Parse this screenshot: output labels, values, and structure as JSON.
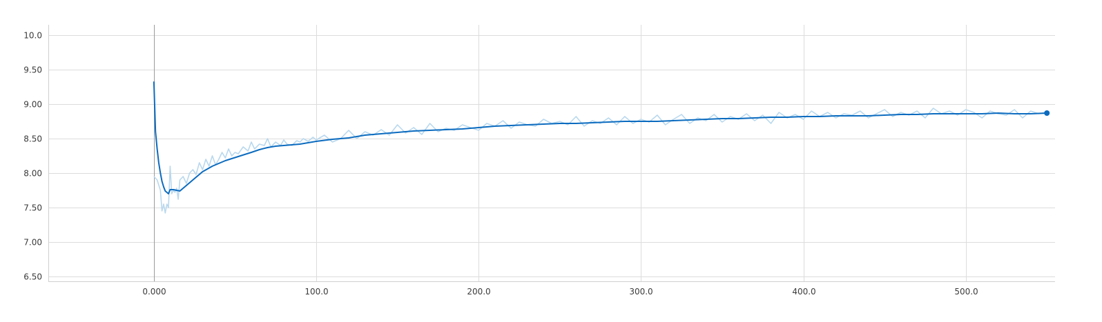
{
  "chart_data": {
    "type": "line",
    "title": "",
    "xlabel": "",
    "ylabel": "",
    "xlim": [
      -65,
      555
    ],
    "ylim": [
      6.43,
      10.15
    ],
    "x_ticks": [
      {
        "value": 0,
        "label": "0.000"
      },
      {
        "value": 100,
        "label": "100.0"
      },
      {
        "value": 200,
        "label": "200.0"
      },
      {
        "value": 300,
        "label": "300.0"
      },
      {
        "value": 400,
        "label": "400.0"
      },
      {
        "value": 500,
        "label": "500.0"
      }
    ],
    "y_ticks": [
      {
        "value": 6.5,
        "label": "6.50"
      },
      {
        "value": 7.0,
        "label": "7.00"
      },
      {
        "value": 7.5,
        "label": "7.50"
      },
      {
        "value": 8.0,
        "label": "8.00"
      },
      {
        "value": 8.5,
        "label": "8.50"
      },
      {
        "value": 9.0,
        "label": "9.00"
      },
      {
        "value": 9.5,
        "label": "9.50"
      },
      {
        "value": 10.0,
        "label": "10.0"
      }
    ],
    "grid": true,
    "colors": {
      "raw": "#b8d8ee",
      "smoothed": "#0b6bbf",
      "grid": "#dcdcdc"
    },
    "series": [
      {
        "role": "raw",
        "x": [
          0,
          2,
          4,
          5,
          6,
          7,
          8,
          9,
          10,
          11,
          12,
          13,
          14,
          15,
          16,
          18,
          20,
          22,
          24,
          26,
          28,
          30,
          32,
          34,
          36,
          38,
          40,
          42,
          44,
          46,
          48,
          50,
          52,
          55,
          58,
          60,
          62,
          65,
          68,
          70,
          72,
          75,
          78,
          80,
          82,
          85,
          88,
          90,
          92,
          95,
          98,
          100,
          105,
          110,
          115,
          120,
          125,
          130,
          135,
          140,
          145,
          150,
          155,
          160,
          165,
          170,
          175,
          180,
          185,
          190,
          195,
          200,
          205,
          210,
          215,
          220,
          225,
          230,
          235,
          240,
          245,
          250,
          255,
          260,
          265,
          270,
          275,
          280,
          285,
          290,
          295,
          300,
          305,
          310,
          315,
          320,
          325,
          330,
          335,
          340,
          345,
          350,
          355,
          360,
          365,
          370,
          375,
          380,
          385,
          390,
          395,
          400,
          405,
          410,
          415,
          420,
          425,
          430,
          435,
          440,
          445,
          450,
          455,
          460,
          465,
          470,
          475,
          480,
          485,
          490,
          495,
          500,
          505,
          510,
          515,
          520,
          525,
          530,
          535,
          540,
          545,
          550
        ],
        "y": [
          7.95,
          7.9,
          7.75,
          7.45,
          7.55,
          7.42,
          7.55,
          7.5,
          8.1,
          7.7,
          7.75,
          7.72,
          7.78,
          7.62,
          7.9,
          7.95,
          7.85,
          8.0,
          8.05,
          7.98,
          8.15,
          8.05,
          8.2,
          8.1,
          8.25,
          8.12,
          8.2,
          8.3,
          8.22,
          8.35,
          8.25,
          8.3,
          8.28,
          8.38,
          8.32,
          8.45,
          8.35,
          8.42,
          8.4,
          8.5,
          8.38,
          8.45,
          8.4,
          8.48,
          8.42,
          8.4,
          8.47,
          8.45,
          8.5,
          8.46,
          8.52,
          8.48,
          8.55,
          8.45,
          8.5,
          8.62,
          8.5,
          8.6,
          8.55,
          8.63,
          8.55,
          8.7,
          8.58,
          8.66,
          8.56,
          8.72,
          8.6,
          8.65,
          8.62,
          8.7,
          8.66,
          8.62,
          8.72,
          8.68,
          8.76,
          8.65,
          8.74,
          8.7,
          8.68,
          8.78,
          8.72,
          8.75,
          8.7,
          8.82,
          8.68,
          8.76,
          8.72,
          8.8,
          8.7,
          8.82,
          8.72,
          8.78,
          8.74,
          8.84,
          8.7,
          8.78,
          8.85,
          8.72,
          8.8,
          8.76,
          8.85,
          8.74,
          8.82,
          8.78,
          8.86,
          8.76,
          8.84,
          8.72,
          8.88,
          8.8,
          8.85,
          8.78,
          8.9,
          8.82,
          8.88,
          8.8,
          8.86,
          8.84,
          8.9,
          8.8,
          8.86,
          8.92,
          8.82,
          8.88,
          8.84,
          8.9,
          8.8,
          8.94,
          8.86,
          8.9,
          8.84,
          8.92,
          8.88,
          8.8,
          8.9,
          8.86,
          8.84,
          8.92,
          8.8,
          8.9,
          8.86,
          8.88
        ]
      },
      {
        "role": "smoothed",
        "x": [
          0,
          1,
          2,
          3,
          4,
          5,
          6,
          7,
          8,
          9,
          10,
          12,
          14,
          16,
          18,
          20,
          22,
          25,
          28,
          30,
          33,
          36,
          40,
          44,
          48,
          52,
          56,
          60,
          65,
          70,
          75,
          80,
          85,
          90,
          95,
          100,
          110,
          120,
          130,
          140,
          150,
          160,
          170,
          180,
          190,
          200,
          210,
          220,
          230,
          240,
          250,
          260,
          270,
          280,
          290,
          300,
          310,
          320,
          330,
          340,
          350,
          360,
          370,
          380,
          390,
          400,
          410,
          420,
          430,
          440,
          450,
          460,
          470,
          480,
          490,
          500,
          510,
          520,
          530,
          540,
          550
        ],
        "y": [
          9.32,
          8.6,
          8.35,
          8.15,
          8.0,
          7.88,
          7.8,
          7.74,
          7.72,
          7.7,
          7.76,
          7.76,
          7.75,
          7.74,
          7.78,
          7.82,
          7.86,
          7.92,
          7.98,
          8.02,
          8.06,
          8.1,
          8.14,
          8.18,
          8.21,
          8.24,
          8.27,
          8.3,
          8.34,
          8.37,
          8.39,
          8.4,
          8.41,
          8.42,
          8.44,
          8.46,
          8.49,
          8.51,
          8.55,
          8.57,
          8.59,
          8.61,
          8.62,
          8.63,
          8.64,
          8.66,
          8.68,
          8.69,
          8.7,
          8.71,
          8.72,
          8.72,
          8.73,
          8.74,
          8.75,
          8.75,
          8.75,
          8.76,
          8.77,
          8.78,
          8.79,
          8.79,
          8.8,
          8.81,
          8.81,
          8.82,
          8.82,
          8.83,
          8.83,
          8.83,
          8.84,
          8.85,
          8.85,
          8.86,
          8.86,
          8.86,
          8.86,
          8.87,
          8.86,
          8.86,
          8.87
        ]
      }
    ]
  }
}
